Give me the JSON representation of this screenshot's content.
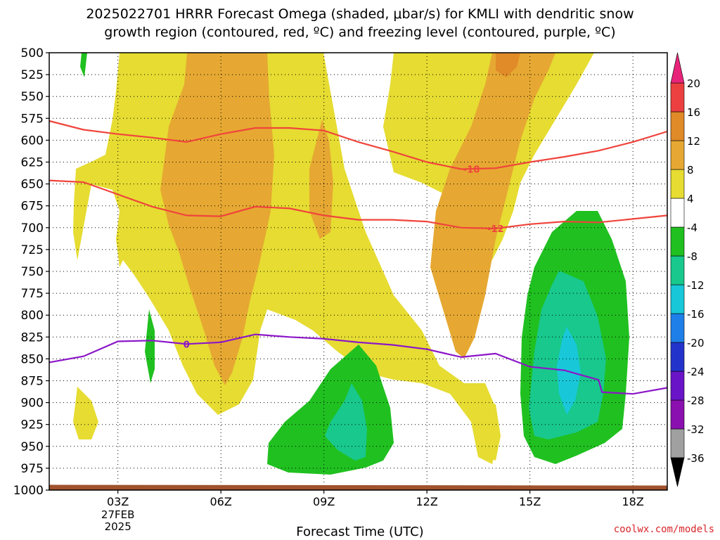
{
  "title": {
    "line1": "2025022701 HRRR Forecast Omega (shaded, μbar/s) for KMLI with dendritic snow",
    "line2": "growth region (contoured, red, ºC) and freezing level (contoured, purple, ºC)"
  },
  "credit": "coolwx.com/models",
  "chart_data": {
    "type": "heatmap",
    "title": "2025022701 HRRR Forecast Omega (shaded, μbar/s) for KMLI with dendritic snow growth region (contoured, red, ºC) and freezing level (contoured, purple, ºC)",
    "xlabel": "Forecast Time (UTC)",
    "ylabel": "",
    "x_domain_hours": [
      1,
      19
    ],
    "y_scale": "pressure (reversed, hPa)",
    "ylim": [
      1000,
      500
    ],
    "y_ticks": [
      500,
      525,
      550,
      575,
      600,
      625,
      650,
      675,
      700,
      725,
      750,
      775,
      800,
      825,
      850,
      875,
      900,
      925,
      950,
      975,
      1000
    ],
    "x_ticks": [
      {
        "hour": 3,
        "label": "03Z",
        "sub": [
          "27FEB",
          "2025"
        ]
      },
      {
        "hour": 6,
        "label": "06Z"
      },
      {
        "hour": 9,
        "label": "09Z"
      },
      {
        "hour": 12,
        "label": "12Z"
      },
      {
        "hour": 15,
        "label": "15Z"
      },
      {
        "hour": 18,
        "label": "18Z"
      }
    ],
    "grid": true,
    "colorbar": {
      "levels": [
        -36,
        -32,
        -28,
        -24,
        -20,
        -16,
        -12,
        -8,
        -4,
        4,
        8,
        12,
        16,
        20
      ],
      "bins": [
        {
          "range": "< -36",
          "color": "#000000"
        },
        {
          "range": "-36 to -32",
          "color": "#a0a0a0"
        },
        {
          "range": "-32 to -28",
          "color": "#8a10b0"
        },
        {
          "range": "-28 to -24",
          "color": "#6a14c8"
        },
        {
          "range": "-24 to -20",
          "color": "#2233cc"
        },
        {
          "range": "-20 to -16",
          "color": "#1e7fe8"
        },
        {
          "range": "-16 to -12",
          "color": "#18c8d8"
        },
        {
          "range": "-12 to -8",
          "color": "#18c88c"
        },
        {
          "range": "-8 to -4",
          "color": "#20c020"
        },
        {
          "range": "-4 to 4",
          "color": "#ffffff"
        },
        {
          "range": "4 to 8",
          "color": "#e6dc32"
        },
        {
          "range": "8 to 12",
          "color": "#e6a832"
        },
        {
          "range": "12 to 16",
          "color": "#e08a28"
        },
        {
          "range": "16 to 20",
          "color": "#ec4040"
        },
        {
          "range": "> 20",
          "color": "#e8247a"
        }
      ]
    },
    "contours": [
      {
        "label": "-18",
        "color": "#f0443c",
        "label_at": [
          13.3,
          633
        ],
        "points": [
          [
            1,
            578
          ],
          [
            2,
            588
          ],
          [
            3,
            593
          ],
          [
            4,
            597
          ],
          [
            5,
            602
          ],
          [
            6,
            593
          ],
          [
            7,
            586
          ],
          [
            8,
            586
          ],
          [
            9,
            589
          ],
          [
            10,
            602
          ],
          [
            11,
            613
          ],
          [
            12,
            625
          ],
          [
            13,
            633
          ],
          [
            14,
            632
          ],
          [
            15,
            625
          ],
          [
            16,
            619
          ],
          [
            17,
            612
          ],
          [
            18,
            602
          ],
          [
            19,
            590
          ]
        ]
      },
      {
        "label": "-12",
        "color": "#f0443c",
        "label_at": [
          14,
          701
        ],
        "points": [
          [
            1,
            646
          ],
          [
            2,
            648
          ],
          [
            3,
            662
          ],
          [
            4,
            676
          ],
          [
            5,
            686
          ],
          [
            6,
            687
          ],
          [
            7,
            676
          ],
          [
            8,
            678
          ],
          [
            9,
            686
          ],
          [
            10,
            691
          ],
          [
            11,
            691
          ],
          [
            12,
            693
          ],
          [
            13,
            700
          ],
          [
            14,
            701
          ],
          [
            15,
            696
          ],
          [
            16,
            693
          ],
          [
            17,
            694
          ],
          [
            18,
            690
          ],
          [
            19,
            686
          ]
        ]
      },
      {
        "label": "0",
        "color": "#8c16c8",
        "label_at": [
          5,
          833
        ],
        "points": [
          [
            1,
            854
          ],
          [
            2,
            847
          ],
          [
            3,
            830
          ],
          [
            4,
            829
          ],
          [
            5,
            833
          ],
          [
            6,
            831
          ],
          [
            7,
            822
          ],
          [
            8,
            825
          ],
          [
            9,
            827
          ],
          [
            10,
            831
          ],
          [
            11,
            834
          ],
          [
            12,
            839
          ],
          [
            13,
            848
          ],
          [
            14,
            844
          ],
          [
            15,
            859
          ],
          [
            16,
            863
          ],
          [
            17,
            874
          ],
          [
            17.1,
            888
          ],
          [
            18,
            890
          ],
          [
            19,
            883
          ]
        ]
      }
    ],
    "omega_regions": [
      {
        "value_range": "4 to 8",
        "location": "broad region 02Z-10Z, 500-880 hPa; 10Z-17Z, 500-720 hPa; secondary rising branch 12Z-14Z down to 960 hPa"
      },
      {
        "value_range": "8 to 12",
        "location": "04Z-07Z 500-840 hPa; 08Z-10Z 560-670 hPa; 12Z-15Z 500-810 hPa"
      },
      {
        "value_range": "-8 to -4",
        "location": "08Z-11Z 790-985 hPa; 15Z-18Z 640-960 hPa"
      },
      {
        "value_range": "-12 to -8",
        "location": "09Z-10Z 880-960 hPa; 15Z-17Z 700-940 hPa"
      },
      {
        "value_range": "-16 to -12",
        "location": "16Z 790-890 hPa"
      }
    ],
    "surface": {
      "color": "#a0522d",
      "pressure_hpa": 994
    }
  }
}
